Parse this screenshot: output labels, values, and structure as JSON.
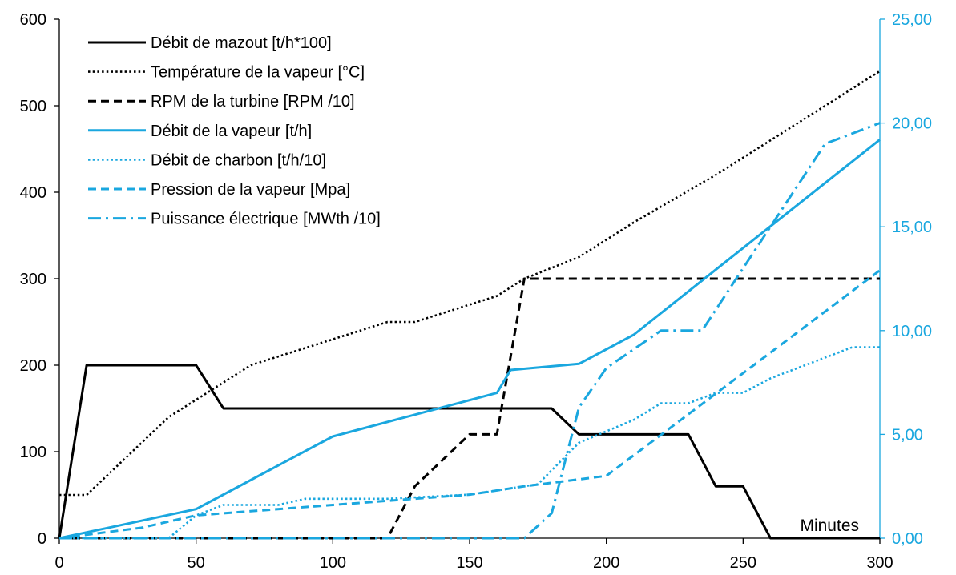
{
  "chart_data": {
    "type": "line",
    "x_axis": {
      "min": 0,
      "max": 300,
      "ticks": [
        0,
        50,
        100,
        150,
        200,
        250,
        300
      ],
      "label": "Minutes"
    },
    "y_left": {
      "min": 0,
      "max": 600,
      "ticks": [
        0,
        100,
        200,
        300,
        400,
        500,
        600
      ]
    },
    "y_right": {
      "min": 0,
      "max": 25,
      "ticks": [
        0,
        5,
        10,
        15,
        20,
        25
      ],
      "tick_labels": [
        "0,00",
        "5,00",
        "10,00",
        "15,00",
        "20,00",
        "25,00"
      ],
      "color": "#1aa7df"
    },
    "grid": false,
    "legend_position": "top-left",
    "series": [
      {
        "name": "Débit de mazout [t/h*100]",
        "axis": "left",
        "color": "#000000",
        "style": "solid",
        "points": [
          [
            0,
            0
          ],
          [
            10,
            200
          ],
          [
            50,
            200
          ],
          [
            60,
            150
          ],
          [
            180,
            150
          ],
          [
            190,
            120
          ],
          [
            230,
            120
          ],
          [
            240,
            60
          ],
          [
            250,
            60
          ],
          [
            260,
            0
          ],
          [
            300,
            0
          ]
        ]
      },
      {
        "name": "Température de la vapeur [°C]",
        "axis": "left",
        "color": "#000000",
        "style": "dotted",
        "points": [
          [
            0,
            50
          ],
          [
            10,
            50
          ],
          [
            40,
            140
          ],
          [
            70,
            200
          ],
          [
            90,
            220
          ],
          [
            120,
            250
          ],
          [
            130,
            250
          ],
          [
            160,
            280
          ],
          [
            170,
            300
          ],
          [
            190,
            325
          ],
          [
            210,
            365
          ],
          [
            240,
            420
          ],
          [
            300,
            540
          ]
        ]
      },
      {
        "name": "RPM de la turbine [RPM /10]",
        "axis": "left",
        "color": "#000000",
        "style": "dashed",
        "points": [
          [
            0,
            0
          ],
          [
            120,
            0
          ],
          [
            130,
            60
          ],
          [
            150,
            120
          ],
          [
            160,
            120
          ],
          [
            170,
            300
          ],
          [
            300,
            300
          ]
        ]
      },
      {
        "name": "Débit de la vapeur [t/h]",
        "axis": "right",
        "color": "#1aa7df",
        "style": "solid",
        "points": [
          [
            0,
            0
          ],
          [
            50,
            1.4
          ],
          [
            100,
            4.9
          ],
          [
            160,
            7
          ],
          [
            165,
            8.1
          ],
          [
            190,
            8.4
          ],
          [
            210,
            9.8
          ],
          [
            300,
            19.2
          ]
        ]
      },
      {
        "name": "Débit de charbon [t/h/10]",
        "axis": "right",
        "color": "#1aa7df",
        "style": "dotted",
        "points": [
          [
            0,
            0
          ],
          [
            40,
            0
          ],
          [
            50,
            1.1
          ],
          [
            60,
            1.6
          ],
          [
            80,
            1.6
          ],
          [
            90,
            1.9
          ],
          [
            120,
            1.9
          ],
          [
            150,
            2.1
          ],
          [
            175,
            2.6
          ],
          [
            190,
            4.6
          ],
          [
            210,
            5.7
          ],
          [
            220,
            6.5
          ],
          [
            230,
            6.5
          ],
          [
            240,
            7
          ],
          [
            250,
            7
          ],
          [
            260,
            7.7
          ],
          [
            290,
            9.2
          ],
          [
            300,
            9.2
          ]
        ]
      },
      {
        "name": "Pression de la vapeur [Mpa]",
        "axis": "right",
        "color": "#1aa7df",
        "style": "dashed",
        "points": [
          [
            0,
            0
          ],
          [
            30,
            0.5
          ],
          [
            50,
            1.1
          ],
          [
            100,
            1.6
          ],
          [
            150,
            2.1
          ],
          [
            170,
            2.5
          ],
          [
            200,
            3
          ],
          [
            300,
            12.9
          ]
        ]
      },
      {
        "name": "Puissance électrique [MWth /10]",
        "axis": "right",
        "color": "#1aa7df",
        "style": "dashdot",
        "points": [
          [
            0,
            0
          ],
          [
            170,
            0
          ],
          [
            180,
            1.2
          ],
          [
            190,
            6.3
          ],
          [
            200,
            8.2
          ],
          [
            220,
            10
          ],
          [
            235,
            10
          ],
          [
            250,
            13
          ],
          [
            265,
            16
          ],
          [
            280,
            19
          ],
          [
            300,
            20
          ]
        ]
      }
    ]
  }
}
